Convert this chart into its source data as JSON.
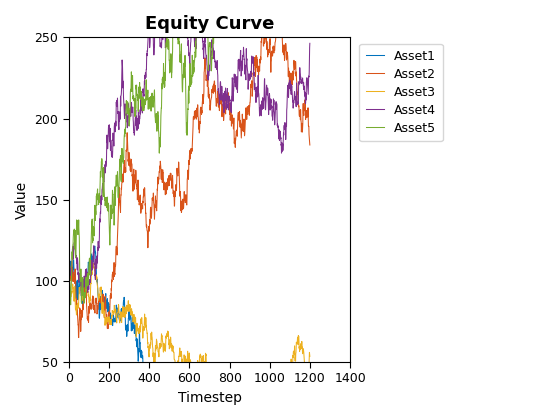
{
  "n": 1200,
  "title": "Equity Curve",
  "xlabel": "Timestep",
  "ylabel": "Value",
  "xlim": [
    0,
    1400
  ],
  "ylim": [
    50,
    250
  ],
  "xticks": [
    0,
    200,
    400,
    600,
    800,
    1000,
    1200,
    1400
  ],
  "yticks": [
    50,
    100,
    150,
    200,
    250
  ],
  "legend_labels": [
    "Asset1",
    "Asset2",
    "Asset3",
    "Asset4",
    "Asset5"
  ],
  "colors": [
    "#0072BD",
    "#D95319",
    "#EDB120",
    "#7E2F8E",
    "#77AC30"
  ],
  "linewidth": 0.75,
  "figsize": [
    5.6,
    4.2
  ],
  "dpi": 100
}
